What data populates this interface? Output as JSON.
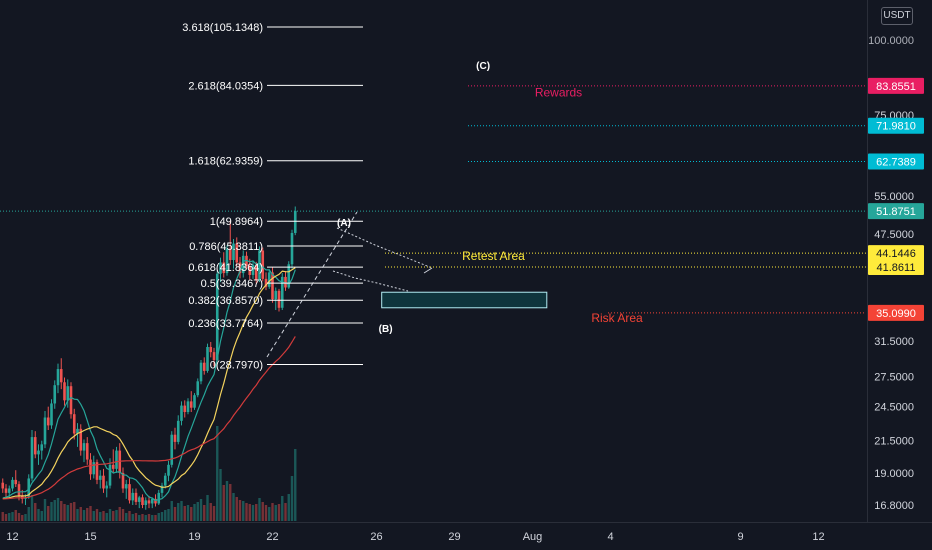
{
  "currency_unit": "USDT",
  "colors": {
    "background": "#131722",
    "up": "#26a69a",
    "down": "#ef5350",
    "ma_fast": "#26a69a",
    "ma_mid": "#f4d35e",
    "ma_slow": "#d23b3b",
    "fib": "#ffffff",
    "rewards": "#e91e63",
    "target": "#00bcd4",
    "current": "#26a69a",
    "retest": "#ffeb3b",
    "risk": "#f44336",
    "zone": "#b2ebf2"
  },
  "chart_data": {
    "type": "candlestick",
    "y_axis": {
      "scale": "log",
      "ylim": [
        15.6,
        110
      ],
      "tick_labels": [
        "16.8000",
        "19.0000",
        "21.5000",
        "24.5000",
        "27.5000",
        "31.5000",
        "47.5000",
        "55.0000",
        "75.0000"
      ],
      "clipped_top_label": "100.0000"
    },
    "x_axis": {
      "xlim": [
        -1,
        64
      ],
      "ticks": [
        {
          "x": 0,
          "label": "12"
        },
        {
          "x": 6,
          "label": "15"
        },
        {
          "x": 14,
          "label": "19"
        },
        {
          "x": 20,
          "label": "22"
        },
        {
          "x": 28,
          "label": "26"
        },
        {
          "x": 34,
          "label": "29"
        },
        {
          "x": 40,
          "label": "Aug"
        },
        {
          "x": 46,
          "label": "4"
        },
        {
          "x": 56,
          "label": "9"
        },
        {
          "x": 62,
          "label": "12"
        }
      ]
    },
    "price_lines": [
      {
        "name": "rewards",
        "value": 83.8551,
        "label": "83.8551",
        "color": "#e91e63"
      },
      {
        "name": "target",
        "value": 71.981,
        "label": "71.9810",
        "color": "#00bcd4"
      },
      {
        "name": "fib-target",
        "value": 62.7389,
        "label": "62.7389",
        "color": "#00bcd4"
      },
      {
        "name": "current",
        "value": 51.8751,
        "label": "51.8751",
        "color": "#26a69a"
      },
      {
        "name": "retest-high",
        "value": 44.1446,
        "label": "44.1446",
        "color": "#ffeb3b"
      },
      {
        "name": "retest-low",
        "value": 41.8611,
        "label": "41.8611",
        "color": "#ffeb3b"
      },
      {
        "name": "risk",
        "value": 35.099,
        "label": "35.0990",
        "color": "#f44336"
      }
    ],
    "fibonacci": [
      {
        "ratio": "3.618",
        "price": 105.1348,
        "label": "3.618(105.1348)"
      },
      {
        "ratio": "2.618",
        "price": 84.0354,
        "label": "2.618(84.0354)"
      },
      {
        "ratio": "1.618",
        "price": 62.9359,
        "label": "1.618(62.9359)"
      },
      {
        "ratio": "1",
        "price": 49.8964,
        "label": "1(49.8964)"
      },
      {
        "ratio": "0.786",
        "price": 45.3811,
        "label": "0.786(45.3811)"
      },
      {
        "ratio": "0.618",
        "price": 41.8364,
        "label": "0.618(41.8364)"
      },
      {
        "ratio": "0.5",
        "price": 39.3467,
        "label": "0.5(39.3467)"
      },
      {
        "ratio": "0.382",
        "price": 36.857,
        "label": "0.382(36.8570)"
      },
      {
        "ratio": "0.236",
        "price": 33.7764,
        "label": "0.236(33.7764)"
      },
      {
        "ratio": "0",
        "price": 28.797,
        "label": "0(28.7970)"
      }
    ],
    "annotations": [
      {
        "name": "rewards",
        "text": "Rewards",
        "x": 42,
        "y": 80.5,
        "color": "#e91e63"
      },
      {
        "name": "retest-area",
        "text": "Retest Area",
        "x": 37,
        "y": 43.0,
        "color": "#ffeb3b"
      },
      {
        "name": "risk-area",
        "text": "Risk Area",
        "x": 46.5,
        "y": 33.9,
        "color": "#f44336"
      },
      {
        "name": "wave-a",
        "text": "(A)",
        "x": 25.5,
        "y": 49.0,
        "color": "#ffffff"
      },
      {
        "name": "wave-b",
        "text": "(B)",
        "x": 28.7,
        "y": 32.6,
        "color": "#ffffff"
      },
      {
        "name": "wave-c",
        "text": "(C)",
        "x": 36.2,
        "y": 89.5,
        "color": "#ffffff"
      }
    ],
    "zone": {
      "x0": 28.4,
      "x1": 41.1,
      "y_low": 35.8,
      "y_high": 38.0
    },
    "ohlc": [
      [
        18.3,
        18.6,
        17.6,
        17.9
      ],
      [
        17.9,
        18.2,
        17.3,
        17.6
      ],
      [
        17.6,
        18.1,
        17.2,
        17.9
      ],
      [
        17.9,
        18.7,
        17.7,
        18.5
      ],
      [
        18.5,
        19.2,
        18.0,
        18.2
      ],
      [
        18.2,
        18.4,
        17.1,
        17.4
      ],
      [
        17.4,
        17.8,
        16.9,
        17.2
      ],
      [
        17.2,
        17.5,
        16.8,
        17.3
      ],
      [
        17.3,
        18.9,
        17.2,
        18.6
      ],
      [
        18.6,
        22.4,
        18.4,
        21.8
      ],
      [
        21.8,
        22.3,
        20.1,
        20.4
      ],
      [
        20.4,
        21.2,
        19.6,
        20.7
      ],
      [
        20.7,
        21.5,
        20.0,
        21.2
      ],
      [
        21.2,
        24.1,
        20.9,
        23.5
      ],
      [
        23.5,
        24.5,
        22.4,
        22.8
      ],
      [
        22.8,
        25.2,
        22.5,
        24.8
      ],
      [
        24.8,
        27.1,
        24.3,
        26.6
      ],
      [
        26.6,
        28.9,
        25.8,
        28.3
      ],
      [
        28.3,
        29.5,
        26.2,
        26.9
      ],
      [
        26.9,
        27.4,
        24.6,
        25.1
      ],
      [
        25.1,
        27.2,
        24.4,
        26.5
      ],
      [
        26.5,
        26.9,
        23.4,
        23.8
      ],
      [
        23.8,
        24.3,
        21.6,
        22.1
      ],
      [
        22.1,
        23.0,
        21.0,
        22.5
      ],
      [
        22.5,
        22.9,
        20.3,
        20.7
      ],
      [
        20.7,
        21.6,
        19.8,
        21.3
      ],
      [
        21.3,
        21.8,
        19.6,
        20.0
      ],
      [
        20.0,
        20.5,
        18.5,
        18.9
      ],
      [
        18.9,
        20.3,
        18.6,
        19.8
      ],
      [
        19.8,
        20.0,
        18.2,
        18.5
      ],
      [
        18.5,
        19.2,
        17.9,
        18.8
      ],
      [
        18.8,
        19.3,
        17.6,
        17.9
      ],
      [
        17.9,
        18.4,
        17.3,
        18.1
      ],
      [
        18.1,
        20.1,
        17.9,
        19.6
      ],
      [
        19.6,
        20.8,
        19.0,
        19.3
      ],
      [
        19.3,
        21.0,
        19.0,
        20.7
      ],
      [
        20.7,
        21.3,
        18.6,
        19.0
      ],
      [
        19.0,
        19.4,
        17.6,
        17.9
      ],
      [
        17.9,
        18.5,
        17.2,
        18.2
      ],
      [
        18.2,
        18.6,
        16.9,
        17.1
      ],
      [
        17.1,
        17.9,
        16.8,
        17.6
      ],
      [
        17.6,
        17.9,
        16.8,
        17.0
      ],
      [
        17.0,
        17.4,
        16.6,
        17.3
      ],
      [
        17.3,
        17.5,
        16.6,
        16.8
      ],
      [
        16.8,
        17.3,
        16.5,
        17.1
      ],
      [
        17.1,
        17.4,
        16.6,
        16.9
      ],
      [
        16.9,
        17.3,
        16.6,
        17.2
      ],
      [
        17.2,
        17.5,
        16.7,
        16.9
      ],
      [
        16.9,
        17.8,
        16.8,
        17.6
      ],
      [
        17.6,
        18.3,
        17.3,
        18.1
      ],
      [
        18.1,
        19.0,
        17.9,
        18.8
      ],
      [
        18.8,
        19.9,
        18.4,
        19.6
      ],
      [
        19.6,
        22.3,
        19.4,
        22.0
      ],
      [
        22.0,
        22.6,
        20.8,
        21.4
      ],
      [
        21.4,
        23.7,
        21.2,
        23.2
      ],
      [
        23.2,
        25.0,
        22.8,
        24.6
      ],
      [
        24.6,
        25.1,
        23.5,
        24.0
      ],
      [
        24.0,
        25.3,
        23.8,
        25.0
      ],
      [
        25.0,
        26.0,
        24.0,
        24.4
      ],
      [
        24.4,
        25.8,
        24.2,
        25.6
      ],
      [
        25.6,
        27.3,
        25.4,
        27.0
      ],
      [
        27.0,
        29.3,
        26.7,
        29.0
      ],
      [
        29.0,
        29.6,
        27.7,
        28.1
      ],
      [
        28.1,
        31.2,
        27.9,
        30.8
      ],
      [
        30.8,
        31.4,
        29.6,
        30.2
      ],
      [
        30.2,
        30.7,
        28.6,
        29.3
      ],
      [
        29.3,
        41.3,
        29.2,
        40.8
      ],
      [
        40.8,
        43.4,
        39.5,
        42.6
      ],
      [
        42.6,
        44.3,
        40.2,
        40.9
      ],
      [
        40.9,
        45.5,
        40.5,
        44.9
      ],
      [
        44.9,
        49.9,
        42.2,
        43.0
      ],
      [
        43.0,
        46.6,
        41.6,
        45.8
      ],
      [
        45.8,
        46.9,
        42.0,
        42.6
      ],
      [
        42.6,
        43.5,
        40.1,
        40.9
      ],
      [
        40.9,
        44.6,
        40.2,
        43.7
      ],
      [
        43.7,
        44.4,
        41.5,
        42.0
      ],
      [
        42.0,
        43.2,
        39.9,
        40.6
      ],
      [
        40.6,
        42.9,
        40.0,
        42.2
      ],
      [
        42.2,
        42.7,
        39.3,
        39.8
      ],
      [
        39.8,
        45.3,
        39.5,
        44.6
      ],
      [
        44.6,
        45.1,
        39.6,
        40.0
      ],
      [
        40.0,
        41.0,
        38.3,
        38.8
      ],
      [
        38.8,
        41.5,
        38.5,
        41.0
      ],
      [
        41.0,
        41.8,
        36.5,
        37.0
      ],
      [
        37.0,
        38.7,
        35.5,
        38.2
      ],
      [
        38.2,
        38.5,
        35.3,
        35.8
      ],
      [
        35.8,
        40.9,
        35.5,
        40.3
      ],
      [
        40.3,
        41.2,
        38.2,
        38.7
      ],
      [
        38.7,
        42.8,
        38.5,
        42.3
      ],
      [
        42.3,
        48.3,
        41.6,
        47.7
      ],
      [
        47.7,
        52.8,
        47.3,
        51.9
      ]
    ],
    "volume": [
      0.9,
      0.7,
      0.8,
      0.9,
      1.1,
      0.8,
      0.6,
      0.7,
      1.4,
      2.6,
      1.8,
      1.2,
      1.0,
      2.2,
      1.5,
      1.9,
      2.1,
      2.3,
      2.0,
      1.7,
      1.6,
      1.8,
      1.9,
      1.2,
      1.4,
      1.1,
      1.3,
      1.5,
      1.0,
      1.2,
      0.9,
      1.0,
      0.8,
      1.2,
      1.0,
      1.1,
      1.4,
      1.2,
      0.8,
      1.0,
      0.7,
      0.8,
      0.6,
      0.7,
      0.6,
      0.7,
      0.6,
      0.6,
      0.8,
      0.9,
      1.1,
      1.2,
      2.0,
      1.4,
      1.8,
      2.0,
      1.5,
      1.6,
      1.4,
      1.7,
      1.9,
      2.2,
      1.6,
      2.6,
      1.8,
      1.5,
      9.5,
      5.2,
      3.6,
      4.0,
      3.7,
      2.8,
      2.4,
      2.1,
      2.0,
      1.8,
      1.7,
      1.6,
      1.7,
      2.3,
      1.9,
      1.6,
      1.4,
      1.8,
      1.6,
      1.7,
      2.5,
      1.8,
      2.7,
      4.5,
      7.2
    ],
    "moving_averages": [
      {
        "name": "ma-fast",
        "period": 9,
        "color": "#26a69a"
      },
      {
        "name": "ma-mid",
        "period": 21,
        "color": "#f4d35e"
      },
      {
        "name": "ma-slow",
        "period": 50,
        "color": "#d23b3b"
      }
    ]
  }
}
